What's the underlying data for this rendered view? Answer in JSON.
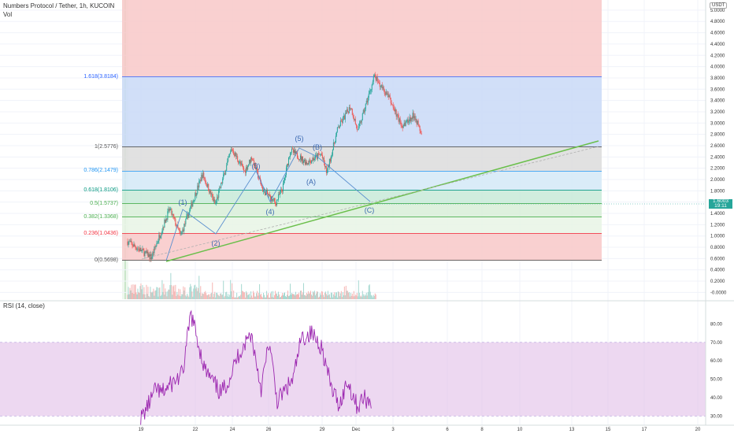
{
  "header": {
    "symbol": "Numbers Protocol / Tether, 1h, KUCOIN",
    "volume_label": "Vol"
  },
  "rsi": {
    "title": "RSI (14, close)"
  },
  "quote_currency": "USDT",
  "last_price": {
    "value": "1.6003",
    "countdown": "19:11",
    "color": "#26a69a"
  },
  "fib_levels": [
    {
      "ratio": 1.618,
      "label": "1.618(3.8184)",
      "color": "#2962ff"
    },
    {
      "ratio": 1,
      "label": "1(2.5776)",
      "color": "#555555"
    },
    {
      "ratio": 0.786,
      "label": "0.786(2.1479)",
      "color": "#2196f3"
    },
    {
      "ratio": 0.618,
      "label": "0.618(1.8106)",
      "color": "#089981"
    },
    {
      "ratio": 0.5,
      "label": "0.5(1.5737)",
      "color": "#4caf50"
    },
    {
      "ratio": 0.382,
      "label": "0.382(1.3368)",
      "color": "#4caf50"
    },
    {
      "ratio": 0.236,
      "label": "0.236(1.0436)",
      "color": "#f23645"
    },
    {
      "ratio": 0,
      "label": "0(0.5698)",
      "color": "#555555"
    }
  ],
  "price_axis": [
    "5.0000",
    "4.8000",
    "4.6000",
    "4.4000",
    "4.2000",
    "4.0000",
    "3.8000",
    "3.6000",
    "3.4000",
    "3.2000",
    "3.0000",
    "2.8000",
    "2.6000",
    "2.4000",
    "2.2000",
    "2.0000",
    "1.8000",
    "1.6000",
    "1.4000",
    "1.2000",
    "1.0000",
    "0.8000",
    "0.6000",
    "0.4000",
    "0.2000",
    "-0.0000"
  ],
  "rsi_axis": [
    "80.00",
    "70.00",
    "60.00",
    "50.00",
    "40.00",
    "30.00"
  ],
  "time_axis": [
    "19",
    "22",
    "24",
    "26",
    "29",
    "Dec",
    "3",
    "6",
    "8",
    "10",
    "13",
    "15",
    "17",
    "20"
  ],
  "wave_labels": [
    "(1)",
    "(2)",
    "(3)",
    "(4)",
    "(5)",
    "(A)",
    "(B)",
    "(C)"
  ],
  "colors": {
    "up": "#26a69a",
    "down": "#ef5350",
    "trendline": "#6abf4b",
    "rsi_line": "#9c27b0",
    "rsi_band": "#e1bee7"
  },
  "chart_data": {
    "type": "candlestick",
    "price_range": [
      0,
      5
    ],
    "path": [
      [
        0,
        0.9
      ],
      [
        1.3,
        0.62
      ],
      [
        2.3,
        1.48
      ],
      [
        2.9,
        1.0
      ],
      [
        4.1,
        2.1
      ],
      [
        4.8,
        1.55
      ],
      [
        5.7,
        2.55
      ],
      [
        6.4,
        2.14
      ],
      [
        6.8,
        2.4
      ],
      [
        7.4,
        1.82
      ],
      [
        8.1,
        1.58
      ],
      [
        8.5,
        1.86
      ],
      [
        8.9,
        2.52
      ],
      [
        9.8,
        2.3
      ],
      [
        10.6,
        2.45
      ],
      [
        10.9,
        2.12
      ],
      [
        11.5,
        2.9
      ],
      [
        12.2,
        3.3
      ],
      [
        12.6,
        2.85
      ],
      [
        13.5,
        3.82
      ],
      [
        14.3,
        3.45
      ],
      [
        15,
        2.95
      ],
      [
        15.7,
        3.15
      ],
      [
        16.1,
        2.78
      ]
    ],
    "rsi_path": [
      [
        0.1,
        28
      ],
      [
        0.9,
        45
      ],
      [
        1.1,
        42
      ],
      [
        2.2,
        53
      ],
      [
        2.6,
        86
      ],
      [
        3.3,
        55
      ],
      [
        4.1,
        42
      ],
      [
        4.5,
        50
      ],
      [
        5.0,
        64
      ],
      [
        5.6,
        75
      ],
      [
        6.1,
        45
      ],
      [
        6.5,
        70
      ],
      [
        6.9,
        38
      ],
      [
        7.7,
        50
      ],
      [
        8.1,
        72
      ],
      [
        8.6,
        75
      ],
      [
        9.1,
        68
      ],
      [
        9.6,
        45
      ],
      [
        10.0,
        36
      ],
      [
        10.4,
        49
      ],
      [
        10.9,
        35
      ],
      [
        11.2,
        40
      ],
      [
        11.6,
        37
      ]
    ]
  }
}
